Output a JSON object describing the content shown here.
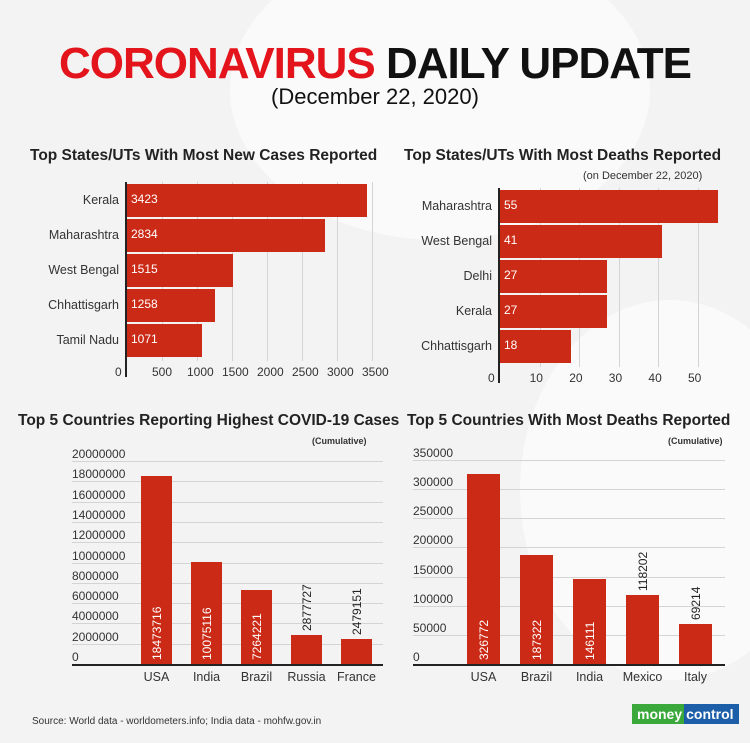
{
  "header": {
    "title_red": "CORONAVIRUS",
    "title_black": "DAILY UPDATE",
    "subtitle": "(December 22, 2020)"
  },
  "colors": {
    "accent_red": "#e3141b",
    "bar_red": "#cb2a16",
    "logo_green": "#3aa83a",
    "logo_blue": "#1c5ea8"
  },
  "chart_data": [
    {
      "type": "bar",
      "orientation": "horizontal",
      "title": "Top States/UTs With Most New Cases Reported",
      "categories": [
        "Kerala",
        "Maharashtra",
        "West Bengal",
        "Chhattisgarh",
        "Tamil Nadu"
      ],
      "values": [
        3423,
        2834,
        1515,
        1258,
        1071
      ],
      "xticks": [
        "0",
        "500",
        "1000",
        "1500",
        "2000",
        "2500",
        "3000",
        "3500"
      ],
      "xlim": [
        0,
        3500
      ],
      "grid": true
    },
    {
      "type": "bar",
      "orientation": "horizontal",
      "title": "Top States/UTs With Most Deaths Reported",
      "subtitle": "(on December 22, 2020)",
      "categories": [
        "Maharashtra",
        "West Bengal",
        "Delhi",
        "Kerala",
        "Chhattisgarh"
      ],
      "values": [
        55,
        41,
        27,
        27,
        18
      ],
      "xticks": [
        "0",
        "10",
        "20",
        "30",
        "40",
        "50"
      ],
      "xlim": [
        0,
        55
      ],
      "grid": true
    },
    {
      "type": "bar",
      "orientation": "vertical",
      "title": "Top 5 Countries Reporting Highest COVID-19 Cases",
      "subtitle": "(Cumulative)",
      "categories": [
        "USA",
        "India",
        "Brazil",
        "Russia",
        "France"
      ],
      "values": [
        18473716,
        10075116,
        7264221,
        2877727,
        2479151
      ],
      "labels": [
        "18473716",
        "10075116",
        "7264221",
        "2877727",
        "2479151"
      ],
      "yticks": [
        "20000000",
        "18000000",
        "16000000",
        "14000000",
        "12000000",
        "10000000",
        "8000000",
        "6000000",
        "4000000",
        "2000000",
        "0"
      ],
      "ylim": [
        0,
        20000000
      ],
      "grid": true
    },
    {
      "type": "bar",
      "orientation": "vertical",
      "title": "Top 5 Countries With Most Deaths Reported",
      "subtitle": "(Cumulative)",
      "categories": [
        "USA",
        "Brazil",
        "India",
        "Mexico",
        "Italy"
      ],
      "values": [
        326772,
        187322,
        146111,
        118202,
        69214
      ],
      "labels": [
        "326772",
        "187322",
        "146111",
        "118202",
        "69214"
      ],
      "yticks": [
        "350000",
        "300000",
        "250000",
        "200000",
        "150000",
        "100000",
        "50000",
        "0"
      ],
      "ylim": [
        0,
        350000
      ],
      "grid": true
    }
  ],
  "footer": {
    "source": "Source: World data - worldometers.info; India data - mohfw.gov.in",
    "logo_part1": "money",
    "logo_part2": "control"
  }
}
